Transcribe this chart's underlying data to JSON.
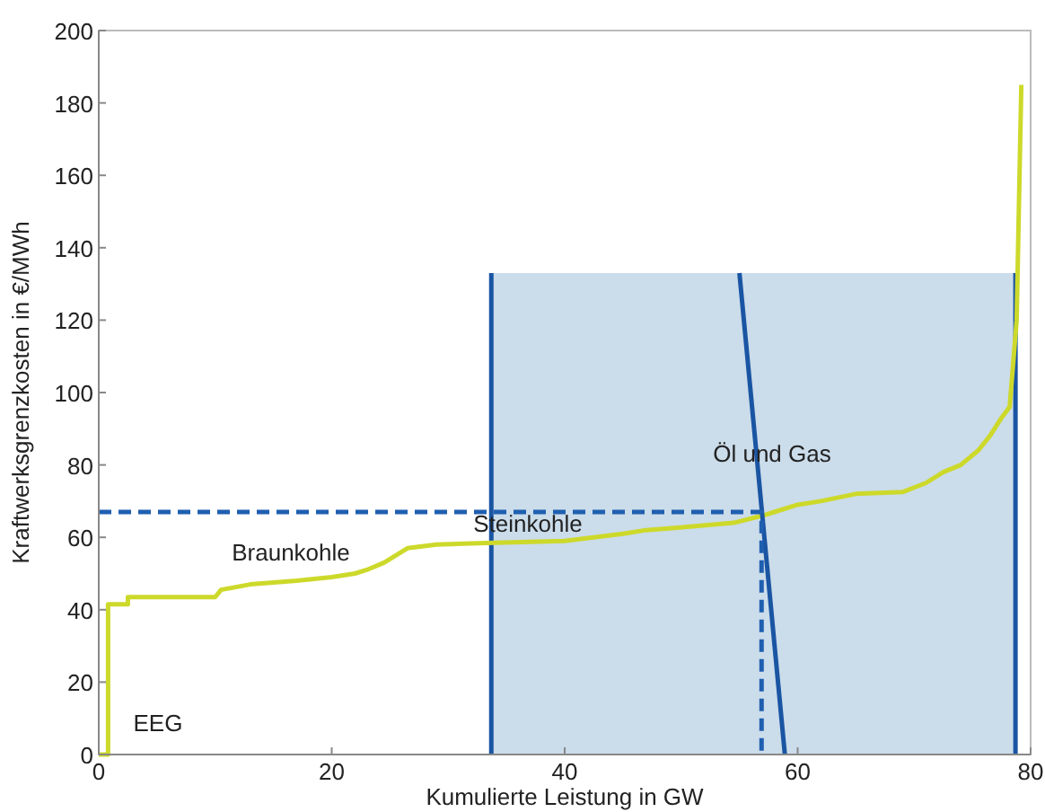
{
  "chart_data": {
    "type": "line",
    "xlabel": "Kumulierte Leistung in GW",
    "ylabel": "Kraftwerksgrenzkosten in €/MWh",
    "xlim": [
      0,
      80
    ],
    "ylim": [
      0,
      200
    ],
    "xticks": [
      0,
      20,
      40,
      60,
      80
    ],
    "yticks": [
      0,
      20,
      40,
      60,
      80,
      100,
      120,
      140,
      160,
      180,
      200
    ],
    "grid": false,
    "marker": "none",
    "series": [
      {
        "type": "area",
        "color": "#cbdcea",
        "x": [
          33.7,
          78.7
        ],
        "values": [
          133,
          133
        ]
      },
      {
        "type": "line",
        "color": "#1a55a3",
        "x": [
          33.7,
          33.7
        ],
        "values": [
          0,
          133
        ]
      },
      {
        "type": "line",
        "color": "#1a55a3",
        "x": [
          78.7,
          78.7
        ],
        "values": [
          0,
          133
        ]
      },
      {
        "color": "#cdd92a",
        "x": [
          0,
          0.8,
          0.8,
          2.5,
          2.5,
          10,
          10.5,
          13,
          17,
          20,
          22,
          23,
          24.5,
          25.5,
          26.5,
          29,
          34,
          40,
          45,
          47,
          51,
          54.5,
          57,
          58,
          60,
          62,
          65,
          69,
          71,
          72.5,
          74,
          75.5,
          76.5,
          77.5,
          78.2,
          78.8,
          79.2
        ],
        "values": [
          0,
          0,
          41.5,
          41.5,
          43.5,
          43.5,
          45.5,
          47,
          48,
          49,
          50,
          51,
          53,
          55,
          57,
          58,
          58.5,
          59,
          61,
          62,
          63,
          64,
          66,
          67,
          69,
          70,
          72,
          72.5,
          75,
          78,
          80,
          84,
          88,
          93,
          96,
          120,
          185
        ]
      },
      {
        "type": "line",
        "color": "#1a55a3",
        "x": [
          55,
          58.9
        ],
        "values": [
          133,
          0
        ]
      },
      {
        "type": "line",
        "color": "#1f5fb0",
        "line_style": "dashed",
        "x": [
          0,
          56.9,
          56.9
        ],
        "values": [
          67,
          67,
          0
        ]
      }
    ],
    "annotations": [
      "EEG",
      "Braunkohle",
      "Steinkohle",
      "Öl und Gas"
    ]
  }
}
